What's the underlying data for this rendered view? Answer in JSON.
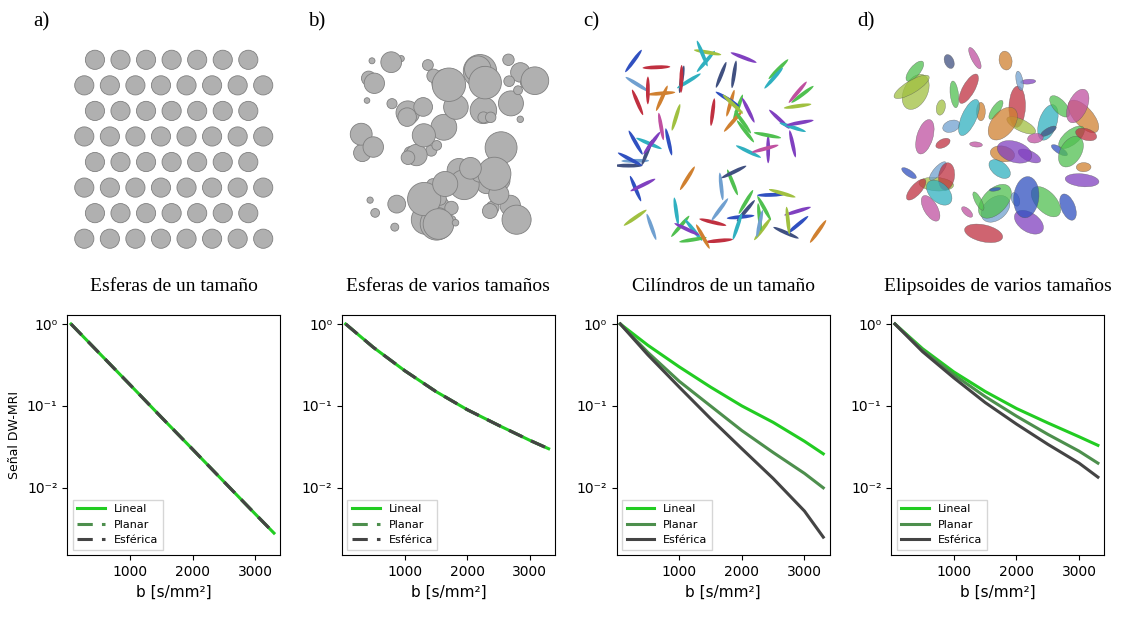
{
  "chart_data": [
    {
      "type": "line",
      "annotations": [
        "a)"
      ],
      "title": "Esferas de un tamaño",
      "ylabel": "Señal DW-MRI",
      "xlabel": "b [s/mm²]",
      "log": "y",
      "x": [
        60,
        500,
        1000,
        1500,
        2000,
        2500,
        3000,
        3300
      ],
      "series": [
        {
          "name": "Lineal",
          "color": "#22cc22",
          "line_style": "solid",
          "values": [
            1,
            0.45,
            0.182,
            0.073,
            0.0296,
            0.0119,
            0.0048,
            0.0028
          ]
        },
        {
          "name": "Planar",
          "color": "#4d8f4d",
          "line_style": "dashed",
          "values": [
            1,
            0.45,
            0.182,
            0.073,
            0.0296,
            0.0119,
            0.0048,
            0.0028
          ]
        },
        {
          "name": "Esférica",
          "color": "#444444",
          "line_style": "dashed",
          "values": [
            1,
            0.45,
            0.182,
            0.073,
            0.0296,
            0.0119,
            0.0048,
            0.0028
          ]
        }
      ],
      "xlim": [
        0,
        3400
      ],
      "xticks": [
        1000,
        2000,
        3000
      ],
      "ylim": [
        0.0015,
        1.3
      ],
      "yticks": [
        {
          "value": 0.01,
          "label": "10⁻²"
        },
        {
          "value": 0.1,
          "label": "10⁻¹"
        },
        {
          "value": 1,
          "label": "10⁰"
        }
      ],
      "legend": "lower left"
    },
    {
      "type": "line",
      "annotations": [
        "b)"
      ],
      "title": "Esferas de varios tamaños",
      "xlabel": "b [s/mm²]",
      "log": "y",
      "x": [
        60,
        500,
        1000,
        1500,
        2000,
        2500,
        3000,
        3300
      ],
      "series": [
        {
          "name": "Lineal",
          "color": "#22cc22",
          "line_style": "solid",
          "values": [
            1,
            0.52,
            0.27,
            0.15,
            0.09,
            0.058,
            0.038,
            0.03
          ]
        },
        {
          "name": "Planar",
          "color": "#4d8f4d",
          "line_style": "dashed",
          "values": [
            1,
            0.52,
            0.27,
            0.15,
            0.09,
            0.058,
            0.038,
            0.03
          ]
        },
        {
          "name": "Esférica",
          "color": "#444444",
          "line_style": "dashed",
          "values": [
            1,
            0.52,
            0.27,
            0.15,
            0.09,
            0.058,
            0.038,
            0.03
          ]
        }
      ],
      "xlim": [
        0,
        3400
      ],
      "xticks": [
        1000,
        2000,
        3000
      ],
      "ylim": [
        0.0015,
        1.3
      ],
      "yticks": [
        {
          "value": 0.01,
          "label": "10⁻²"
        },
        {
          "value": 0.1,
          "label": "10⁻¹"
        },
        {
          "value": 1,
          "label": "10⁰"
        }
      ],
      "legend": "lower left"
    },
    {
      "type": "line",
      "annotations": [
        "c)"
      ],
      "title": "Cilíndros de un tamaño",
      "xlabel": "b [s/mm²]",
      "log": "y",
      "x": [
        60,
        500,
        1000,
        1500,
        2000,
        2500,
        3000,
        3300
      ],
      "series": [
        {
          "name": "Lineal",
          "color": "#22cc22",
          "line_style": "solid",
          "values": [
            1,
            0.55,
            0.3,
            0.17,
            0.1,
            0.063,
            0.037,
            0.026
          ]
        },
        {
          "name": "Planar",
          "color": "#4d8f4d",
          "line_style": "solid",
          "values": [
            1,
            0.45,
            0.2,
            0.1,
            0.05,
            0.027,
            0.015,
            0.01
          ]
        },
        {
          "name": "Esférica",
          "color": "#444444",
          "line_style": "solid",
          "values": [
            1,
            0.42,
            0.17,
            0.07,
            0.03,
            0.013,
            0.0052,
            0.0025
          ]
        }
      ],
      "xlim": [
        0,
        3400
      ],
      "xticks": [
        1000,
        2000,
        3000
      ],
      "ylim": [
        0.0015,
        1.3
      ],
      "yticks": [
        {
          "value": 0.01,
          "label": "10⁻²"
        },
        {
          "value": 0.1,
          "label": "10⁻¹"
        },
        {
          "value": 1,
          "label": "10⁰"
        }
      ],
      "legend": "lower left"
    },
    {
      "type": "line",
      "annotations": [
        "d)"
      ],
      "title": "Elipsoides de varios tamaños",
      "xlabel": "b [s/mm²]",
      "log": "y",
      "x": [
        60,
        500,
        1000,
        1500,
        2000,
        2500,
        3000,
        3300
      ],
      "series": [
        {
          "name": "Lineal",
          "color": "#22cc22",
          "line_style": "solid",
          "values": [
            1,
            0.5,
            0.26,
            0.15,
            0.093,
            0.062,
            0.042,
            0.033
          ]
        },
        {
          "name": "Planar",
          "color": "#4d8f4d",
          "line_style": "solid",
          "values": [
            1,
            0.48,
            0.24,
            0.13,
            0.075,
            0.045,
            0.028,
            0.02
          ]
        },
        {
          "name": "Esférica",
          "color": "#444444",
          "line_style": "solid",
          "values": [
            1,
            0.46,
            0.22,
            0.11,
            0.06,
            0.034,
            0.02,
            0.0135
          ]
        }
      ],
      "xlim": [
        0,
        3400
      ],
      "xticks": [
        1000,
        2000,
        3000
      ],
      "ylim": [
        0.0015,
        1.3
      ],
      "yticks": [
        {
          "value": 0.01,
          "label": "10⁻²"
        },
        {
          "value": 0.1,
          "label": "10⁻¹"
        },
        {
          "value": 1,
          "label": "10⁰"
        }
      ],
      "legend": "lower left"
    }
  ]
}
